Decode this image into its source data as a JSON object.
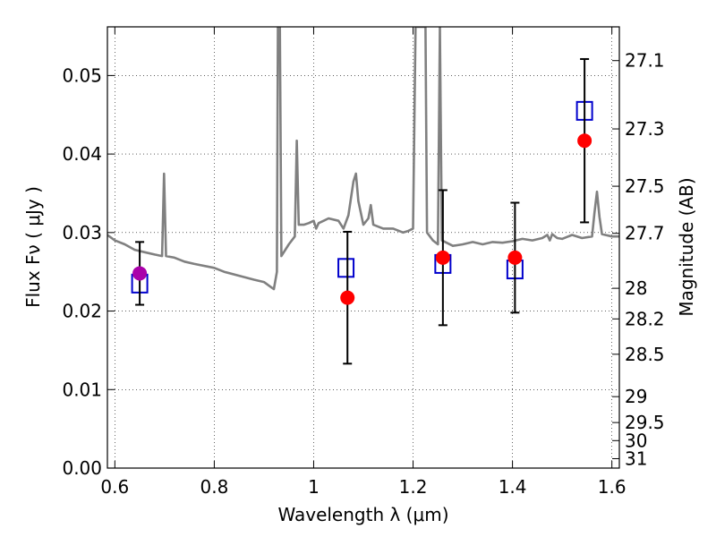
{
  "chart_data": {
    "type": "scatter",
    "xlabel": "Wavelength  λ (μm)",
    "ylabel": "Flux  Fν ( μJy )",
    "ylabel_right": "Magnitude (AB)",
    "xlim": [
      0.585,
      1.615
    ],
    "ylim": [
      0.0,
      0.0562
    ],
    "grid": true,
    "x_ticks": [
      {
        "value": 0.6,
        "label": "0.6"
      },
      {
        "value": 0.8,
        "label": "0.8"
      },
      {
        "value": 1.0,
        "label": "1"
      },
      {
        "value": 1.2,
        "label": "1.2"
      },
      {
        "value": 1.4,
        "label": "1.4"
      },
      {
        "value": 1.6,
        "label": "1.6"
      }
    ],
    "y_ticks": [
      {
        "value": 0.0,
        "label": "0.00"
      },
      {
        "value": 0.01,
        "label": "0.01"
      },
      {
        "value": 0.02,
        "label": "0.02"
      },
      {
        "value": 0.03,
        "label": "0.03"
      },
      {
        "value": 0.04,
        "label": "0.04"
      },
      {
        "value": 0.05,
        "label": "0.05"
      }
    ],
    "right_ticks": [
      {
        "flux": 0.0519,
        "label": "27.1"
      },
      {
        "flux": 0.0432,
        "label": "27.3"
      },
      {
        "flux": 0.0359,
        "label": "27.5"
      },
      {
        "flux": 0.0299,
        "label": "27.7"
      },
      {
        "flux": 0.0229,
        "label": "28"
      },
      {
        "flux": 0.019,
        "label": "28.2"
      },
      {
        "flux": 0.0145,
        "label": "28.5"
      },
      {
        "flux": 0.0091,
        "label": "29"
      },
      {
        "flux": 0.0058,
        "label": "29.5"
      },
      {
        "flux": 0.0035,
        "label": "30"
      },
      {
        "flux": 0.0012,
        "label": "31"
      }
    ],
    "series": [
      {
        "kind": "template-spectrum",
        "color": "#808080",
        "points": [
          [
            0.585,
            0.0297
          ],
          [
            0.6,
            0.029
          ],
          [
            0.62,
            0.0285
          ],
          [
            0.64,
            0.0278
          ],
          [
            0.66,
            0.0275
          ],
          [
            0.68,
            0.0272
          ],
          [
            0.695,
            0.027
          ],
          [
            0.699,
            0.0375
          ],
          [
            0.703,
            0.027
          ],
          [
            0.72,
            0.0268
          ],
          [
            0.74,
            0.0263
          ],
          [
            0.76,
            0.026
          ],
          [
            0.8,
            0.0255
          ],
          [
            0.82,
            0.025
          ],
          [
            0.85,
            0.0245
          ],
          [
            0.88,
            0.024
          ],
          [
            0.9,
            0.0237
          ],
          [
            0.915,
            0.023
          ],
          [
            0.92,
            0.0228
          ],
          [
            0.926,
            0.025
          ],
          [
            0.928,
            0.0562
          ],
          [
            0.932,
            0.0562
          ],
          [
            0.935,
            0.027
          ],
          [
            0.95,
            0.0285
          ],
          [
            0.962,
            0.0295
          ],
          [
            0.966,
            0.0417
          ],
          [
            0.97,
            0.031
          ],
          [
            0.98,
            0.031
          ],
          [
            0.99,
            0.0312
          ],
          [
            1.0,
            0.0315
          ],
          [
            1.005,
            0.0305
          ],
          [
            1.01,
            0.0312
          ],
          [
            1.02,
            0.0315
          ],
          [
            1.03,
            0.0318
          ],
          [
            1.05,
            0.0315
          ],
          [
            1.06,
            0.0305
          ],
          [
            1.07,
            0.0322
          ],
          [
            1.08,
            0.0365
          ],
          [
            1.085,
            0.0375
          ],
          [
            1.09,
            0.034
          ],
          [
            1.1,
            0.031
          ],
          [
            1.11,
            0.0318
          ],
          [
            1.115,
            0.0335
          ],
          [
            1.12,
            0.031
          ],
          [
            1.14,
            0.0305
          ],
          [
            1.16,
            0.0305
          ],
          [
            1.18,
            0.03
          ],
          [
            1.19,
            0.0302
          ],
          [
            1.2,
            0.0305
          ],
          [
            1.205,
            0.0562
          ],
          [
            1.215,
            0.0562
          ],
          [
            1.225,
            0.0562
          ],
          [
            1.228,
            0.03
          ],
          [
            1.24,
            0.029
          ],
          [
            1.25,
            0.0285
          ],
          [
            1.254,
            0.0562
          ],
          [
            1.258,
            0.029
          ],
          [
            1.28,
            0.0283
          ],
          [
            1.3,
            0.0285
          ],
          [
            1.32,
            0.0288
          ],
          [
            1.34,
            0.0285
          ],
          [
            1.36,
            0.0288
          ],
          [
            1.38,
            0.0287
          ],
          [
            1.4,
            0.0289
          ],
          [
            1.42,
            0.0292
          ],
          [
            1.44,
            0.029
          ],
          [
            1.46,
            0.0293
          ],
          [
            1.47,
            0.0297
          ],
          [
            1.475,
            0.029
          ],
          [
            1.48,
            0.0298
          ],
          [
            1.49,
            0.0293
          ],
          [
            1.5,
            0.0292
          ],
          [
            1.52,
            0.0297
          ],
          [
            1.54,
            0.0293
          ],
          [
            1.56,
            0.0295
          ],
          [
            1.565,
            0.0325
          ],
          [
            1.57,
            0.0352
          ],
          [
            1.575,
            0.032
          ],
          [
            1.58,
            0.0298
          ],
          [
            1.6,
            0.0295
          ],
          [
            1.615,
            0.0295
          ]
        ]
      },
      {
        "kind": "model-boxes",
        "color": "#0000cc",
        "points": [
          [
            0.65,
            0.0235
          ],
          [
            1.065,
            0.0255
          ],
          [
            1.26,
            0.026
          ],
          [
            1.405,
            0.0253
          ],
          [
            1.545,
            0.0455
          ]
        ]
      },
      {
        "kind": "observed",
        "color": "#ff0000",
        "points": [
          {
            "x": 1.068,
            "y": 0.0217,
            "err": 0.0084
          },
          {
            "x": 1.26,
            "y": 0.0268,
            "err": 0.0086
          },
          {
            "x": 1.405,
            "y": 0.0268,
            "err": 0.007
          },
          {
            "x": 1.545,
            "y": 0.0417,
            "err": 0.0104
          }
        ]
      },
      {
        "kind": "observed-highlight",
        "color": "#aa00aa",
        "points": [
          {
            "x": 0.65,
            "y": 0.0248,
            "err": 0.004
          }
        ]
      }
    ]
  }
}
